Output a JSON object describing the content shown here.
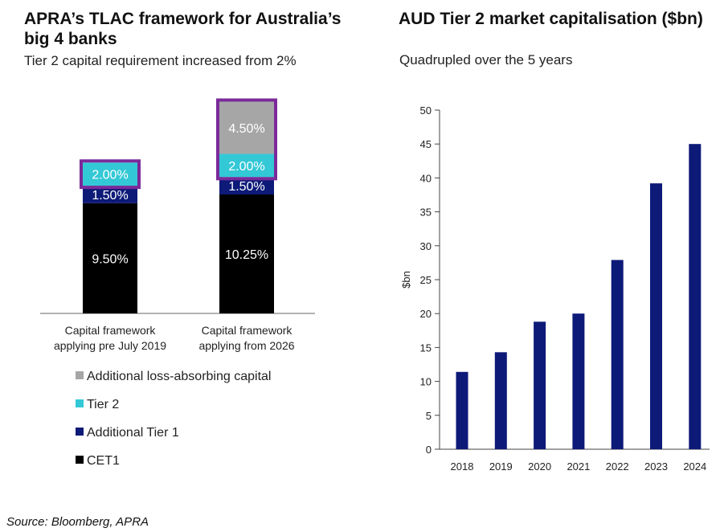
{
  "left_panel": {
    "title_line1": "APRA’s TLAC framework for Australia’s",
    "title_line2": "big 4 banks",
    "subtitle": "Tier 2 capital requirement increased from 2%"
  },
  "right_panel": {
    "title": "AUD Tier 2 market capitalisation ($bn)",
    "subtitle": "Quadrupled over the 5 years"
  },
  "source": "Source: Bloomberg, APRA",
  "colors": {
    "cet1": "#000000",
    "at1": "#0d1a78",
    "tier2": "#33c8d6",
    "lac": "#a6a6a6",
    "highlight": "#7b2a9a",
    "bar": "#0d1a78"
  },
  "chart_data": [
    {
      "type": "bar",
      "stacked": true,
      "title": "APRA’s TLAC framework for Australia’s big 4 banks",
      "subtitle": "Tier 2 capital requirement increased from 2%",
      "categories": [
        [
          "Capital framework",
          "applying pre July 2019"
        ],
        [
          "Capital framework",
          "applying from 2026"
        ]
      ],
      "series": [
        {
          "key": "cet1",
          "name": "CET1",
          "values": [
            9.5,
            10.25
          ],
          "labels": [
            "9.50%",
            "10.25%"
          ]
        },
        {
          "key": "at1",
          "name": "Additional Tier 1",
          "values": [
            1.5,
            1.5
          ],
          "labels": [
            "1.50%",
            "1.50%"
          ]
        },
        {
          "key": "tier2",
          "name": "Tier 2",
          "values": [
            2.0,
            2.0
          ],
          "labels": [
            "2.00%",
            "2.00%"
          ]
        },
        {
          "key": "lac",
          "name": "Additional loss-absorbing capital",
          "values": [
            0,
            4.5
          ],
          "labels": [
            "",
            "4.50%"
          ]
        }
      ],
      "legend": [
        "Additional loss-absorbing capital",
        "Tier 2",
        "Additional Tier 1",
        "CET1"
      ],
      "legend_position": "bottom",
      "highlighted": "Tier 2 and additional loss-absorbing capital boxed",
      "ylim": [
        0,
        18.25
      ]
    },
    {
      "type": "bar",
      "title": "AUD Tier 2 market capitalisation ($bn)",
      "subtitle": "Quadrupled over the 5 years",
      "categories": [
        "2018",
        "2019",
        "2020",
        "2021",
        "2022",
        "2023",
        "2024"
      ],
      "values": [
        11.4,
        14.3,
        18.8,
        20.0,
        27.9,
        39.2,
        45.0
      ],
      "xlabel": "",
      "ylabel": "$bn",
      "ylim": [
        0,
        50
      ],
      "yticks": [
        0,
        5,
        10,
        15,
        20,
        25,
        30,
        35,
        40,
        45,
        50
      ]
    }
  ]
}
